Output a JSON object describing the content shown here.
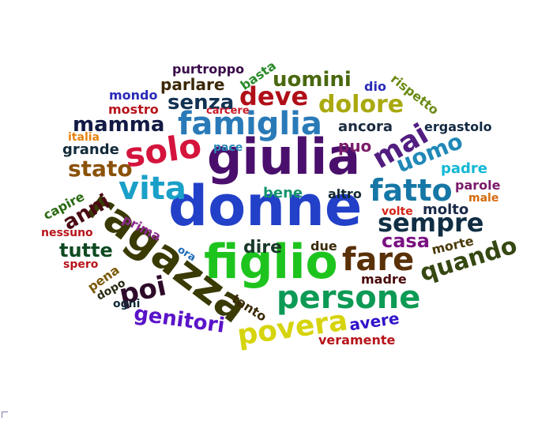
{
  "words": [
    {
      "text": "donne",
      "color": "#2240c8"
    },
    {
      "text": "giulia",
      "color": "#4a0f6c"
    },
    {
      "text": "figlio",
      "color": "#1ec41e"
    },
    {
      "text": "ragazza",
      "color": "#3a3a05"
    },
    {
      "text": "famiglia",
      "color": "#2a7ab8"
    },
    {
      "text": "persone",
      "color": "#0d9a55"
    },
    {
      "text": "solo",
      "color": "#d4143c"
    },
    {
      "text": "vita",
      "color": "#1aa0c8"
    },
    {
      "text": "fatto",
      "color": "#1677a6"
    },
    {
      "text": "sempre",
      "color": "#102e44"
    },
    {
      "text": "fare",
      "color": "#5a3006"
    },
    {
      "text": "povera",
      "color": "#d6d40c"
    },
    {
      "text": "mai",
      "color": "#521d80"
    },
    {
      "text": "quando",
      "color": "#364812"
    },
    {
      "text": "poi",
      "color": "#2e0b2a"
    },
    {
      "text": "uomo",
      "color": "#2088b6"
    },
    {
      "text": "deve",
      "color": "#b00f18"
    },
    {
      "text": "dolore",
      "color": "#a9a90f"
    },
    {
      "text": "mamma",
      "color": "#121a44"
    },
    {
      "text": "stato",
      "color": "#8a5208"
    },
    {
      "text": "genitori",
      "color": "#5a14c8"
    },
    {
      "text": "uomini",
      "color": "#4a6810"
    },
    {
      "text": "senza",
      "color": "#123252"
    },
    {
      "text": "anni",
      "color": "#4a0a14"
    },
    {
      "text": "casa",
      "color": "#7a1282"
    },
    {
      "text": "tutte",
      "color": "#0f4a22"
    },
    {
      "text": "parlare",
      "color": "#3a2806"
    },
    {
      "text": "dire",
      "color": "#1a3a2a"
    },
    {
      "text": "molto",
      "color": "#1a2a48"
    },
    {
      "text": "puo",
      "color": "#7a1c6a"
    },
    {
      "text": "padre",
      "color": "#12b8d4"
    },
    {
      "text": "bene",
      "color": "#14946e"
    },
    {
      "text": "ancora",
      "color": "#1a2a40"
    },
    {
      "text": "avere",
      "color": "#3212c8"
    },
    {
      "text": "grande",
      "color": "#122a3a"
    },
    {
      "text": "madre",
      "color": "#4a0808"
    },
    {
      "text": "parole",
      "color": "#7a1a6a"
    },
    {
      "text": "altro",
      "color": "#122832"
    },
    {
      "text": "morte",
      "color": "#4a3a08"
    },
    {
      "text": "due",
      "color": "#3a2a06"
    },
    {
      "text": "ergastolo",
      "color": "#122a42"
    },
    {
      "text": "pace",
      "color": "#2a8ab8"
    },
    {
      "text": "rispetto",
      "color": "#6a8a12"
    },
    {
      "text": "tanto",
      "color": "#3a2a06"
    },
    {
      "text": "capire",
      "color": "#2a6a12"
    },
    {
      "text": "prima",
      "color": "#8a2a8a"
    },
    {
      "text": "veramente",
      "color": "#b8141a"
    },
    {
      "text": "volte",
      "color": "#d42418"
    },
    {
      "text": "mondo",
      "color": "#2a2ab8"
    },
    {
      "text": "mostro",
      "color": "#b8141a"
    },
    {
      "text": "purtroppo",
      "color": "#3a0a4a"
    },
    {
      "text": "basta",
      "color": "#2a8a2a"
    },
    {
      "text": "carcere",
      "color": "#c81a2a"
    },
    {
      "text": "dio",
      "color": "#2a2ab8"
    },
    {
      "text": "italia",
      "color": "#e8820c"
    },
    {
      "text": "nessuno",
      "color": "#b8141a"
    },
    {
      "text": "male",
      "color": "#d46a0c"
    },
    {
      "text": "spero",
      "color": "#b8141a"
    },
    {
      "text": "pena",
      "color": "#7a5a08"
    },
    {
      "text": "dopo",
      "color": "#2a2a12"
    },
    {
      "text": "ogni",
      "color": "#122a3a"
    },
    {
      "text": "ora",
      "color": "#1a6ab8"
    }
  ]
}
